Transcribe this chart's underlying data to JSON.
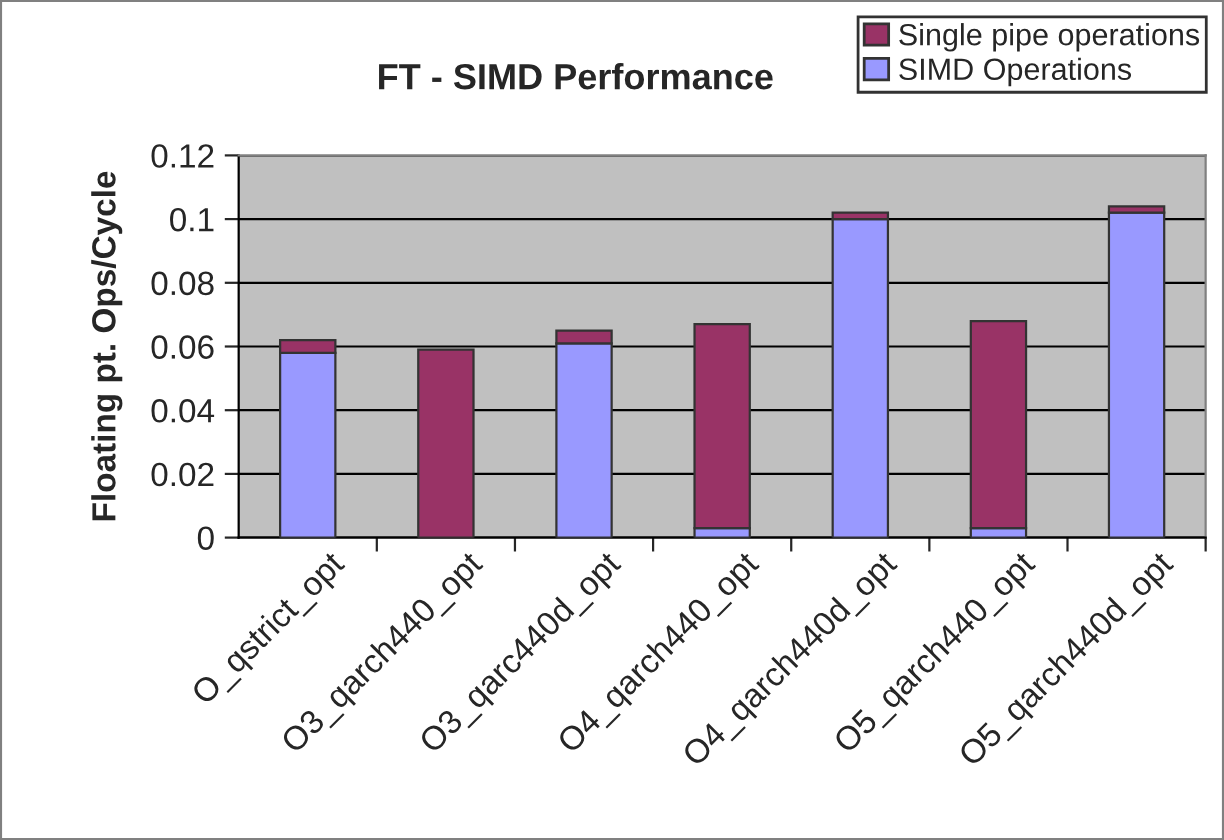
{
  "chart_data": {
    "type": "bar",
    "title": "FT - SIMD Performance",
    "ylabel": "Floating pt. Ops/Cycle",
    "categories": [
      "O_qstrict_opt",
      "O3_qarch440_opt",
      "O3_qarc440d_opt",
      "O4_qarch440_opt",
      "O4_qarch440d_opt",
      "O5_qarch440_opt",
      "O5_qarch440d_opt"
    ],
    "stacked": true,
    "series": [
      {
        "name": "SIMD Operations",
        "color": "#9999ff",
        "values": [
          0.058,
          0,
          0.061,
          0.003,
          0.1,
          0.003,
          0.102
        ]
      },
      {
        "name": "Single pipe operations",
        "color": "#993366",
        "values": [
          0.004,
          0.059,
          0.004,
          0.064,
          0.002,
          0.065,
          0.002
        ]
      }
    ],
    "ylim": [
      0,
      0.12
    ],
    "yticks": [
      {
        "value": 0,
        "label": "0"
      },
      {
        "value": 0.02,
        "label": "0.02"
      },
      {
        "value": 0.04,
        "label": "0.04"
      },
      {
        "value": 0.06,
        "label": "0.06"
      },
      {
        "value": 0.08,
        "label": "0.08"
      },
      {
        "value": 0.1,
        "label": "0.1"
      },
      {
        "value": 0.12,
        "label": "0.12"
      }
    ],
    "grid": "y",
    "legend": "top right"
  }
}
